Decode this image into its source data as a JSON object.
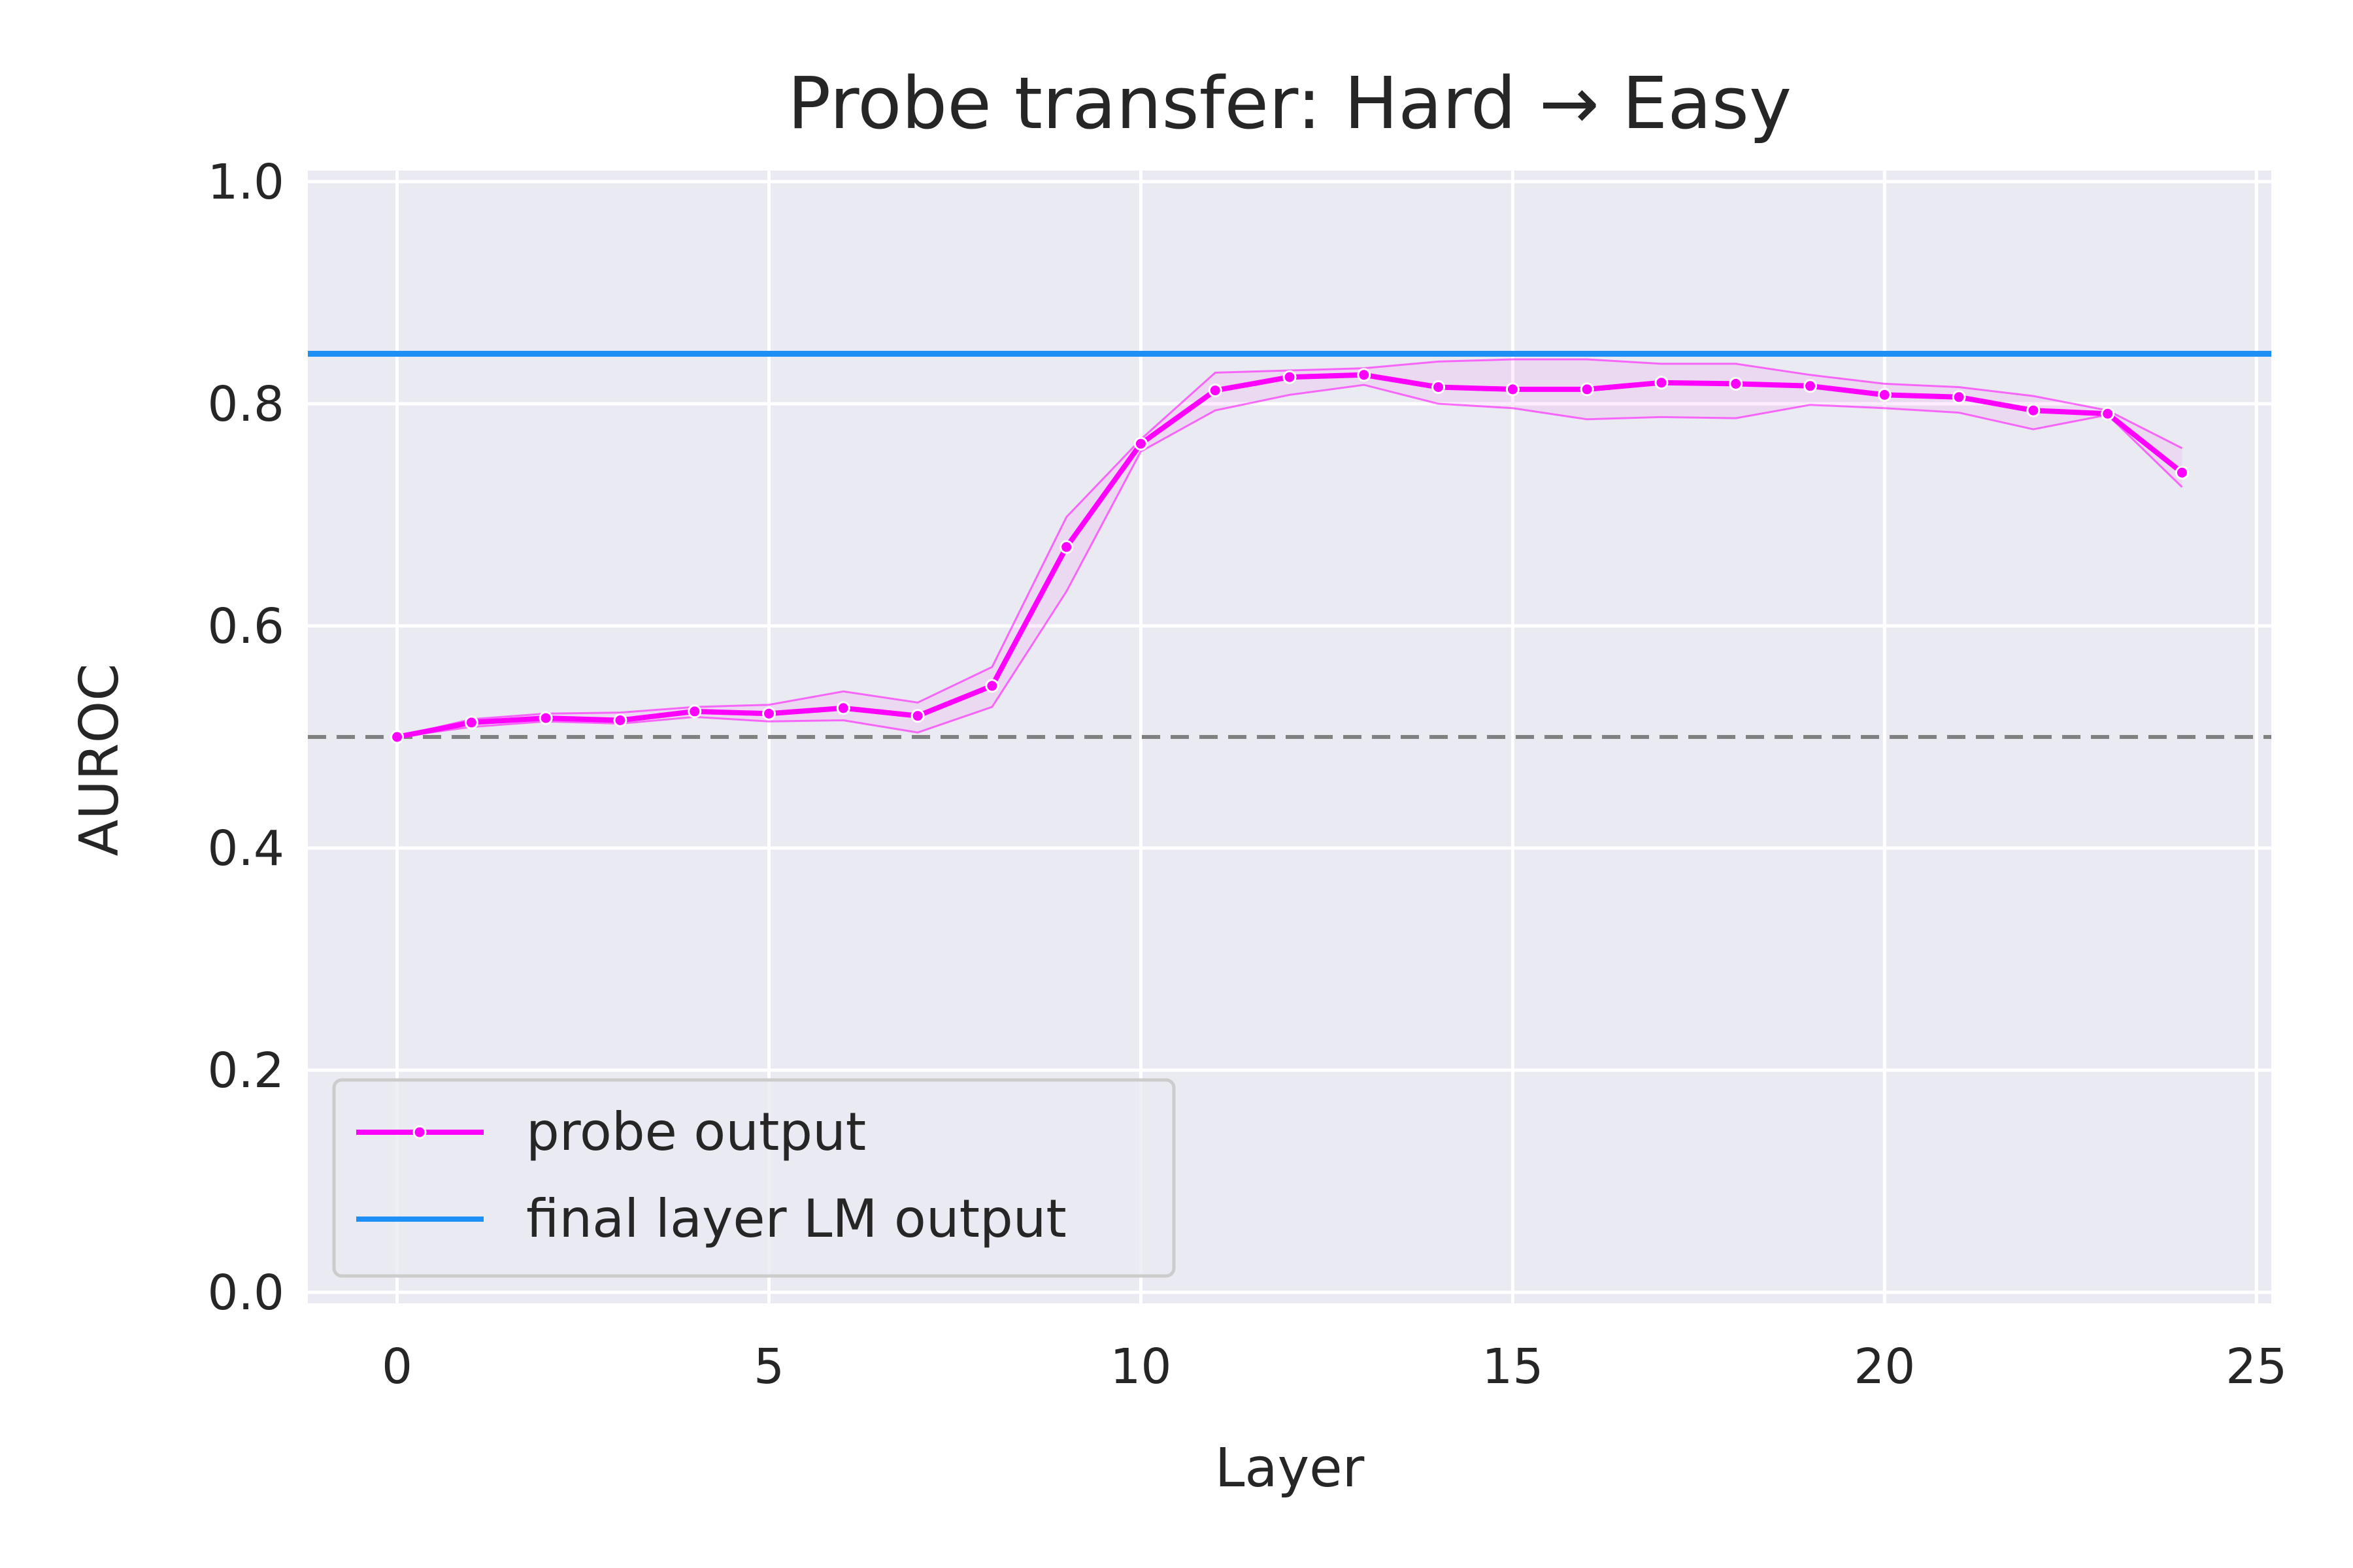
{
  "chart_data": {
    "type": "line",
    "title": "Probe transfer: Hard → Easy",
    "xlabel": "Layer",
    "ylabel": "AUROC",
    "xlim": [
      -1.2,
      25.2
    ],
    "ylim": [
      -0.01,
      1.01
    ],
    "xticks": [
      0,
      5,
      10,
      15,
      20,
      25
    ],
    "yticks": [
      0.0,
      0.2,
      0.4,
      0.6,
      0.8,
      1.0
    ],
    "xtick_labels": [
      "0",
      "5",
      "10",
      "15",
      "20",
      "25"
    ],
    "ytick_labels": [
      "0.0",
      "0.2",
      "0.4",
      "0.6",
      "0.8",
      "1.0"
    ],
    "grid": true,
    "legend_position": "lower-left",
    "series": [
      {
        "name": "probe output",
        "color": "#ff00ff",
        "marker": "dot",
        "x": [
          0,
          1,
          2,
          3,
          4,
          5,
          6,
          7,
          8,
          9,
          10,
          11,
          12,
          13,
          14,
          15,
          16,
          17,
          18,
          19,
          20,
          21,
          22,
          23,
          24
        ],
        "y": [
          0.5,
          0.513,
          0.517,
          0.515,
          0.523,
          0.521,
          0.526,
          0.519,
          0.546,
          0.671,
          0.764,
          0.812,
          0.824,
          0.826,
          0.815,
          0.813,
          0.813,
          0.819,
          0.818,
          0.816,
          0.808,
          0.806,
          0.794,
          0.791,
          0.738
        ]
      }
    ],
    "band": {
      "color": "#ff00ff",
      "upper": [
        0.5,
        0.516,
        0.521,
        0.522,
        0.527,
        0.529,
        0.541,
        0.531,
        0.563,
        0.698,
        0.768,
        0.828,
        0.83,
        0.832,
        0.838,
        0.84,
        0.84,
        0.836,
        0.836,
        0.826,
        0.818,
        0.815,
        0.807,
        0.794,
        0.76
      ],
      "lower": [
        0.5,
        0.509,
        0.514,
        0.512,
        0.518,
        0.514,
        0.515,
        0.504,
        0.527,
        0.631,
        0.757,
        0.794,
        0.808,
        0.817,
        0.8,
        0.796,
        0.786,
        0.788,
        0.787,
        0.799,
        0.796,
        0.792,
        0.777,
        0.79,
        0.725
      ]
    },
    "reference_lines": [
      {
        "name": "final layer LM output",
        "y": 0.845,
        "color": "#1e8ff5",
        "style": "solid"
      },
      {
        "y": 0.5,
        "color": "#808080",
        "style": "dashed"
      }
    ]
  },
  "colors": {
    "plot_background": "#eaeaf2",
    "grid": "#ffffff",
    "text": "#262626"
  }
}
